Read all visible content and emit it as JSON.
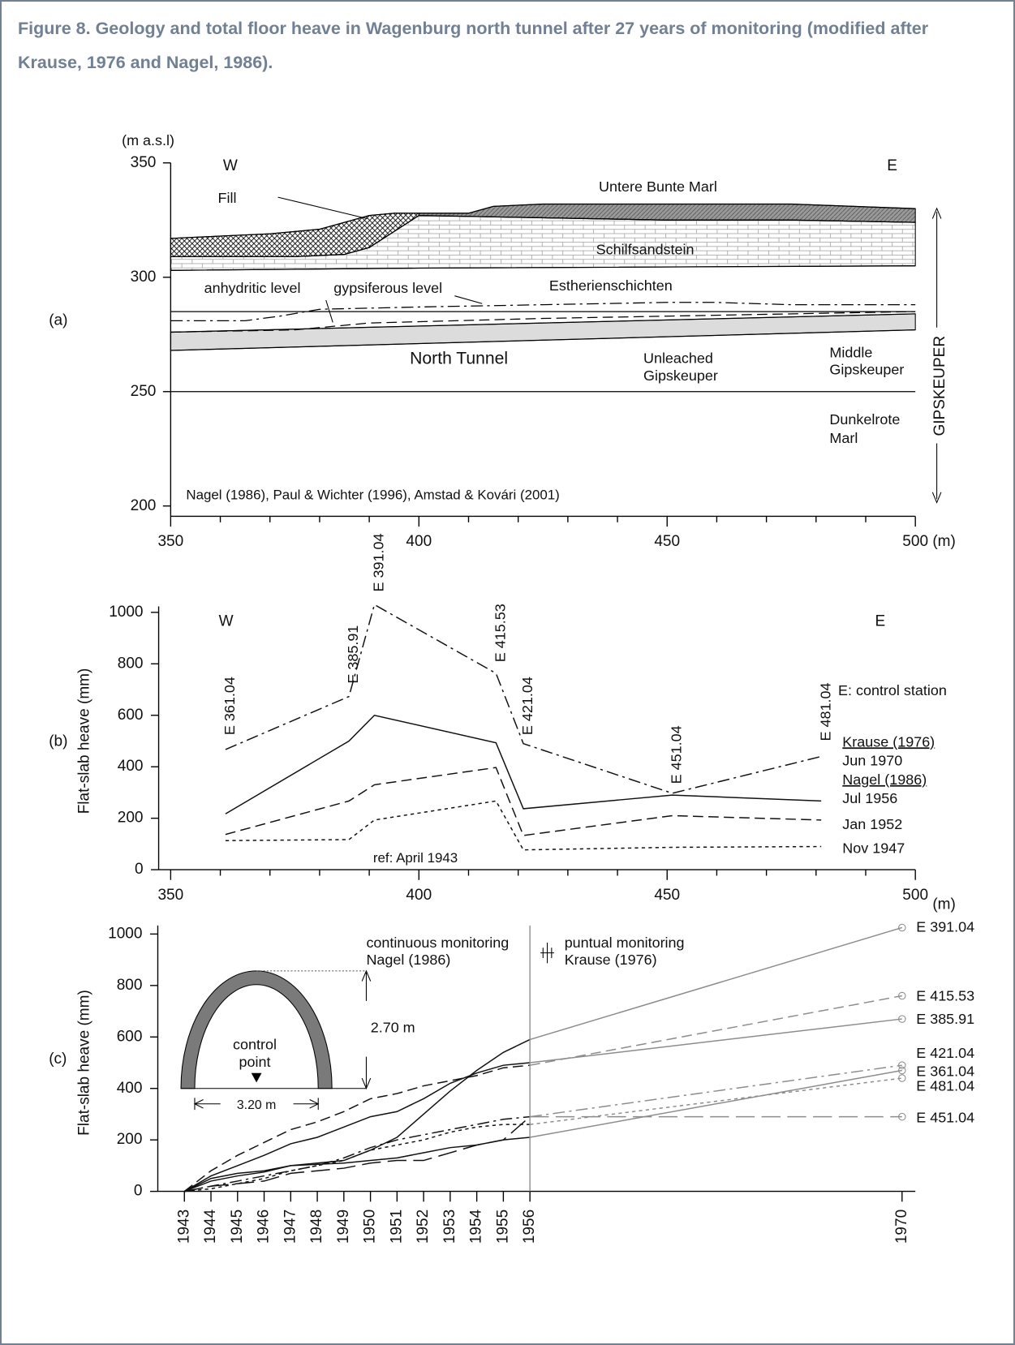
{
  "caption": "Figure 8. Geology and total floor heave in Wagenburg north tunnel after 27 years of monitoring (modified after Krause, 1976 and Nagel, 1986).",
  "chart_data": [
    {
      "type": "section",
      "panel": "(a)",
      "y_unit": "(m a.s.l)",
      "x_unit": "(m)",
      "west": "W",
      "east": "E",
      "fill": "Fill",
      "untere_bunte_marl": "Untere Bunte Marl",
      "schilfsandstein": "Schilfsandstein",
      "anhydritic": "anhydritic level",
      "gypsiferous": "gypsiferous level",
      "estherienschichten": "Estherienschichten",
      "north_tunnel": "North Tunnel",
      "unleached": [
        "Unleached",
        "Gipskeuper"
      ],
      "middle": [
        "Middle",
        "Gipskeuper"
      ],
      "dunkelrote": [
        "Dunkelrote",
        "Marl"
      ],
      "formation": "GIPSKEUPER",
      "source": "Nagel (1986), Paul & Wichter (1996), Amstad & Kovári (2001)",
      "xlim": [
        350,
        500
      ],
      "ylim": [
        200,
        350
      ],
      "xticks": [
        350,
        400,
        450,
        500
      ],
      "yticks": [
        200,
        250,
        300,
        350
      ],
      "xminor": [
        360,
        370,
        380,
        390,
        410,
        420,
        430,
        440,
        460,
        470,
        480,
        490
      ],
      "boundaries": [
        {
          "style": "solid",
          "x": [
            350,
            360,
            370,
            380,
            385,
            390,
            395,
            400,
            410,
            415,
            425,
            450,
            475,
            500
          ],
          "y": [
            317,
            318,
            319,
            321,
            324,
            327,
            328,
            328,
            328,
            331,
            332,
            332,
            332,
            330
          ]
        },
        {
          "style": "solid",
          "x": [
            400,
            425,
            450,
            475,
            500
          ],
          "y": [
            327,
            326,
            325,
            325,
            324
          ]
        },
        {
          "style": "solid",
          "x": [
            350,
            375,
            385,
            390,
            395,
            400
          ],
          "y": [
            309,
            309,
            310,
            313,
            320,
            327
          ]
        },
        {
          "style": "solid",
          "x": [
            350,
            400,
            500
          ],
          "y": [
            303,
            304,
            305
          ]
        },
        {
          "style": "solid",
          "x": [
            350,
            500
          ],
          "y": [
            285,
            285
          ]
        },
        {
          "style": "dash-dot",
          "x": [
            350,
            365,
            372,
            380,
            400,
            425,
            450,
            460,
            475,
            500
          ],
          "y": [
            281,
            281,
            283,
            286,
            287,
            288,
            289,
            289,
            288,
            288
          ]
        },
        {
          "style": "dashed",
          "x": [
            350,
            375,
            390,
            425,
            450,
            500
          ],
          "y": [
            276,
            277,
            280,
            282,
            283,
            285
          ]
        },
        {
          "style": "solid",
          "x": [
            350,
            500
          ],
          "y": [
            276,
            284
          ]
        },
        {
          "style": "solid",
          "x": [
            350,
            500
          ],
          "y": [
            268,
            277
          ]
        },
        {
          "style": "solid",
          "x": [
            350,
            500
          ],
          "y": [
            250,
            250
          ]
        }
      ]
    },
    {
      "type": "line",
      "panel": "(b)",
      "y_label": "Flat-slab heave (mm)",
      "x_unit": "(m)",
      "west": "W",
      "east": "E",
      "station_note": "E: control station",
      "reference": "ref: April 1943",
      "legend_titles": [
        "Krause (1976)",
        "Nagel (1986)"
      ],
      "xlim": [
        350,
        500
      ],
      "ylim": [
        0,
        1000
      ],
      "xticks": [
        350,
        400,
        450,
        500
      ],
      "yticks": [
        0,
        200,
        400,
        600,
        800,
        1000
      ],
      "xminor": [
        360,
        370,
        380,
        390,
        410,
        420,
        430,
        440,
        460,
        470,
        480,
        490
      ],
      "x": [
        {
          "value": 361.04,
          "label": "E 361.04"
        },
        {
          "value": 385.91,
          "label": "E 385.91"
        },
        {
          "value": 391.04,
          "label": "E 391.04"
        },
        {
          "value": 415.53,
          "label": "E 415.53"
        },
        {
          "value": 421.04,
          "label": "E 421.04"
        },
        {
          "value": 451.04,
          "label": "E 451.04"
        },
        {
          "value": 481.04,
          "label": "E 481.04"
        }
      ],
      "series": [
        {
          "name": "Jun 1970",
          "dash": "dash-dot",
          "color": "#111111",
          "values": [
            467,
            673,
            1030,
            763,
            490,
            297,
            440
          ]
        },
        {
          "name": "Jul 1956",
          "dash": "solid",
          "color": "#111111",
          "values": [
            217,
            500,
            600,
            493,
            237,
            290,
            267
          ]
        },
        {
          "name": "Jan 1952",
          "dash": "dashed",
          "color": "#111111",
          "values": [
            137,
            267,
            330,
            397,
            133,
            210,
            193
          ]
        },
        {
          "name": "Nov 1947",
          "dash": "dotted",
          "color": "#111111",
          "values": [
            113,
            117,
            193,
            267,
            77,
            87,
            90
          ]
        }
      ]
    },
    {
      "type": "line",
      "panel": "(c)",
      "y_label": "Flat-slab heave (mm)",
      "continuous": [
        "continuous monitoring",
        "Nagel (1986)"
      ],
      "puntual": [
        "puntual monitoring",
        "Krause (1976)"
      ],
      "control_point": [
        "control",
        "point"
      ],
      "height": "2.70 m",
      "width": "3.20 m",
      "xlim": [
        1942,
        1970.5
      ],
      "ylim": [
        0,
        1000
      ],
      "yticks": [
        0,
        200,
        400,
        600,
        800,
        1000
      ],
      "xticks": [
        1943,
        1944,
        1945,
        1946,
        1947,
        1948,
        1949,
        1950,
        1951,
        1952,
        1953,
        1954,
        1955,
        1956,
        1970
      ],
      "divider_x": 1956,
      "extension_color": "#8c8c8c",
      "x": [
        1943,
        1944,
        1945,
        1946,
        1947,
        1948,
        1949,
        1950,
        1951,
        1952,
        1953,
        1954,
        1955,
        1956,
        1970
      ],
      "series": [
        {
          "name": "E 391.04",
          "dash": "solid",
          "color": "#111111",
          "values": [
            0,
            40,
            60,
            75,
            100,
            110,
            120,
            160,
            210,
            300,
            390,
            470,
            540,
            590,
            1025
          ]
        },
        {
          "name": "E 415.53",
          "dash": "dashed",
          "color": "#111111",
          "values": [
            0,
            80,
            140,
            190,
            240,
            270,
            310,
            360,
            380,
            410,
            430,
            450,
            480,
            490,
            760
          ]
        },
        {
          "name": "E 385.91",
          "dash": "solid",
          "color": "#111111",
          "values": [
            0,
            60,
            100,
            140,
            185,
            210,
            250,
            290,
            310,
            360,
            420,
            460,
            490,
            500,
            670
          ]
        },
        {
          "name": "E 421.04",
          "dash": "dash-dot",
          "color": "#111111",
          "values": [
            0,
            20,
            40,
            60,
            80,
            100,
            130,
            170,
            200,
            220,
            240,
            260,
            280,
            290,
            490
          ]
        },
        {
          "name": "E 361.04",
          "dash": "solid",
          "color": "#111111",
          "values": [
            0,
            50,
            70,
            80,
            100,
            105,
            110,
            120,
            130,
            150,
            170,
            180,
            200,
            210,
            470
          ]
        },
        {
          "name": "E 481.04",
          "dash": "dotted",
          "color": "#111111",
          "values": [
            0,
            10,
            30,
            50,
            80,
            100,
            120,
            160,
            180,
            200,
            230,
            250,
            260,
            260,
            440
          ]
        },
        {
          "name": "E 451.04",
          "dash": "long-dash",
          "color": "#111111",
          "values": [
            0,
            20,
            30,
            40,
            70,
            80,
            90,
            110,
            120,
            120,
            150,
            180,
            200,
            290,
            290
          ]
        }
      ]
    }
  ]
}
